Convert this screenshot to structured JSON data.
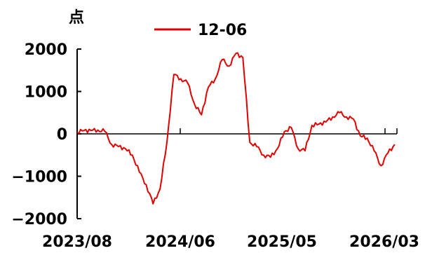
{
  "chart_data": {
    "type": "line",
    "ylabel": "点",
    "ylim": [
      -2000,
      2000
    ],
    "y_ticks": [
      2000,
      1000,
      0,
      -1000,
      -2000
    ],
    "y_tick_labels": [
      "2000",
      "1000",
      "0",
      "−1000",
      "−2000"
    ],
    "x_tick_labels": [
      "2023/08",
      "2024/06",
      "2025/05",
      "2026/03"
    ],
    "legend_position": "top",
    "series": [
      {
        "name": "12-06",
        "color": "#e00000",
        "x": [
          "2023/08",
          "2023/09",
          "2023/10",
          "2023/11",
          "2023/12",
          "2024/01",
          "2024/02",
          "2024/03",
          "2024/04",
          "2024/04",
          "2024/05",
          "2024/05",
          "2024/05",
          "2024/06",
          "2024/06",
          "2024/07",
          "2024/07",
          "2024/08",
          "2024/08",
          "2024/09",
          "2024/09",
          "2024/10",
          "2024/10",
          "2024/11",
          "2024/11",
          "2024/11",
          "2024/12",
          "2025/01",
          "2025/02",
          "2025/03",
          "2025/03",
          "2025/04",
          "2025/04",
          "2025/05",
          "2025/05",
          "2025/06",
          "2025/07",
          "2025/08",
          "2025/09",
          "2025/10",
          "2025/10",
          "2025/11",
          "2025/12",
          "2026/01",
          "2026/02",
          "2026/02",
          "2026/03"
        ],
        "values": [
          40,
          80,
          80,
          90,
          60,
          -250,
          -300,
          -350,
          -500,
          -900,
          -1200,
          -1650,
          -1300,
          -200,
          1400,
          1300,
          1200,
          700,
          450,
          1100,
          1300,
          1750,
          1600,
          1900,
          1800,
          -200,
          -300,
          -500,
          -550,
          -350,
          50,
          150,
          -350,
          -400,
          200,
          230,
          280,
          400,
          500,
          400,
          350,
          -50,
          -100,
          -400,
          -750,
          -450,
          -250
        ]
      }
    ]
  }
}
